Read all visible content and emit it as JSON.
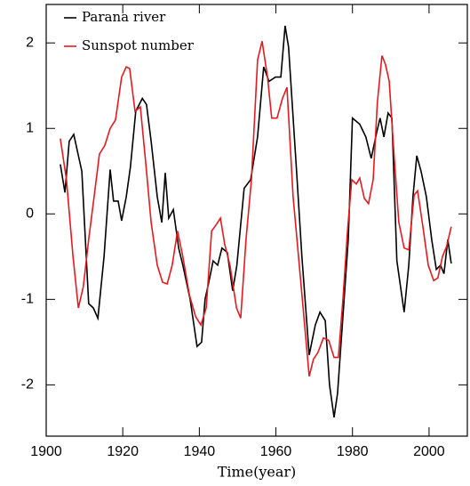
{
  "chart_data": {
    "type": "line",
    "xlabel": "Time(year)",
    "xlim": [
      1900,
      2010
    ],
    "xticks": [
      1900,
      1920,
      1940,
      1960,
      1980,
      2000
    ],
    "ylim": [
      -2.6,
      2.45
    ],
    "yticks": [
      -2,
      -1,
      0,
      1,
      2
    ],
    "legend": "upper left",
    "series": [
      {
        "name": "Parana river",
        "color": "#000000",
        "x": [
          1903.7,
          1904.9,
          1906.0,
          1907.2,
          1909.3,
          1911.1,
          1912.3,
          1913.5,
          1915.1,
          1916.7,
          1917.6,
          1918.8,
          1919.7,
          1920.9,
          1922.0,
          1923.4,
          1925.1,
          1926.2,
          1927.4,
          1929.0,
          1930.2,
          1931.1,
          1932.0,
          1933.2,
          1934.6,
          1935.7,
          1937.6,
          1939.4,
          1940.6,
          1941.5,
          1942.7,
          1943.6,
          1944.8,
          1945.9,
          1947.3,
          1948.7,
          1949.8,
          1951.7,
          1953.4,
          1955.2,
          1956.8,
          1958.2,
          1959.9,
          1961.3,
          1962.4,
          1963.3,
          1965.4,
          1966.8,
          1968.7,
          1970.3,
          1971.5,
          1972.9,
          1974.0,
          1975.2,
          1976.1,
          1977.5,
          1978.9,
          1980.0,
          1981.9,
          1983.5,
          1984.9,
          1986.3,
          1987.2,
          1988.2,
          1989.3,
          1990.3,
          1991.6,
          1993.5,
          1994.7,
          1995.8,
          1996.8,
          1997.9,
          1999.3,
          2000.7,
          2001.9,
          2003.0,
          2003.9,
          2004.9,
          2005.8
        ],
        "values": [
          0.58,
          0.25,
          0.85,
          0.93,
          0.5,
          -1.05,
          -1.1,
          -1.22,
          -0.5,
          0.52,
          0.15,
          0.15,
          -0.08,
          0.2,
          0.55,
          1.2,
          1.35,
          1.28,
          0.85,
          0.2,
          -0.1,
          0.48,
          -0.05,
          0.05,
          -0.4,
          -0.6,
          -1.0,
          -1.55,
          -1.5,
          -1.0,
          -0.75,
          -0.55,
          -0.6,
          -0.4,
          -0.45,
          -0.9,
          -0.6,
          0.3,
          0.4,
          0.9,
          1.72,
          1.55,
          1.6,
          1.6,
          2.2,
          1.95,
          0.5,
          -0.5,
          -1.65,
          -1.3,
          -1.15,
          -1.25,
          -2.0,
          -2.38,
          -2.1,
          -1.2,
          -0.3,
          1.12,
          1.05,
          0.9,
          0.65,
          0.95,
          1.12,
          0.9,
          1.18,
          1.12,
          -0.55,
          -1.15,
          -0.6,
          0.2,
          0.68,
          0.5,
          0.2,
          -0.3,
          -0.65,
          -0.6,
          -0.7,
          -0.3,
          -0.58
        ]
      },
      {
        "name": "Sunspot number",
        "color": "#e8191e",
        "x": [
          1903.7,
          1905.3,
          1907.0,
          1908.4,
          1909.7,
          1911.1,
          1912.5,
          1913.9,
          1915.3,
          1916.7,
          1918.1,
          1919.7,
          1920.9,
          1921.8,
          1923.2,
          1924.6,
          1926.0,
          1927.4,
          1929.0,
          1930.4,
          1931.6,
          1932.9,
          1934.3,
          1935.7,
          1937.4,
          1939.0,
          1940.4,
          1941.8,
          1943.2,
          1944.5,
          1945.5,
          1946.6,
          1948.0,
          1949.7,
          1950.8,
          1952.2,
          1953.6,
          1955.2,
          1956.4,
          1957.8,
          1958.9,
          1960.3,
          1961.7,
          1962.9,
          1964.5,
          1965.9,
          1967.3,
          1968.7,
          1969.8,
          1971.0,
          1972.4,
          1973.8,
          1975.2,
          1976.3,
          1977.5,
          1978.7,
          1979.8,
          1981.0,
          1981.9,
          1983.1,
          1984.2,
          1985.4,
          1986.5,
          1987.7,
          1988.6,
          1989.6,
          1990.7,
          1992.1,
          1993.5,
          1994.7,
          1996.1,
          1997.0,
          1998.4,
          1999.8,
          2001.2,
          2002.3,
          2003.5,
          2004.6,
          2005.8
        ],
        "values": [
          0.88,
          0.4,
          -0.5,
          -1.1,
          -0.85,
          -0.3,
          0.2,
          0.7,
          0.8,
          1.0,
          1.1,
          1.6,
          1.72,
          1.7,
          1.2,
          1.25,
          0.6,
          -0.1,
          -0.6,
          -0.8,
          -0.82,
          -0.6,
          -0.2,
          -0.5,
          -0.95,
          -1.2,
          -1.3,
          -1.1,
          -0.2,
          -0.12,
          -0.05,
          -0.35,
          -0.6,
          -1.1,
          -1.22,
          -0.3,
          0.4,
          1.8,
          2.02,
          1.6,
          1.12,
          1.12,
          1.35,
          1.48,
          0.2,
          -0.5,
          -1.2,
          -1.9,
          -1.7,
          -1.62,
          -1.45,
          -1.48,
          -1.68,
          -1.68,
          -1.0,
          -0.2,
          0.4,
          0.35,
          0.42,
          0.18,
          0.12,
          0.4,
          1.3,
          1.85,
          1.75,
          1.55,
          0.8,
          -0.1,
          -0.4,
          -0.42,
          0.22,
          0.27,
          -0.15,
          -0.6,
          -0.78,
          -0.75,
          -0.5,
          -0.38,
          -0.15
        ]
      }
    ]
  }
}
